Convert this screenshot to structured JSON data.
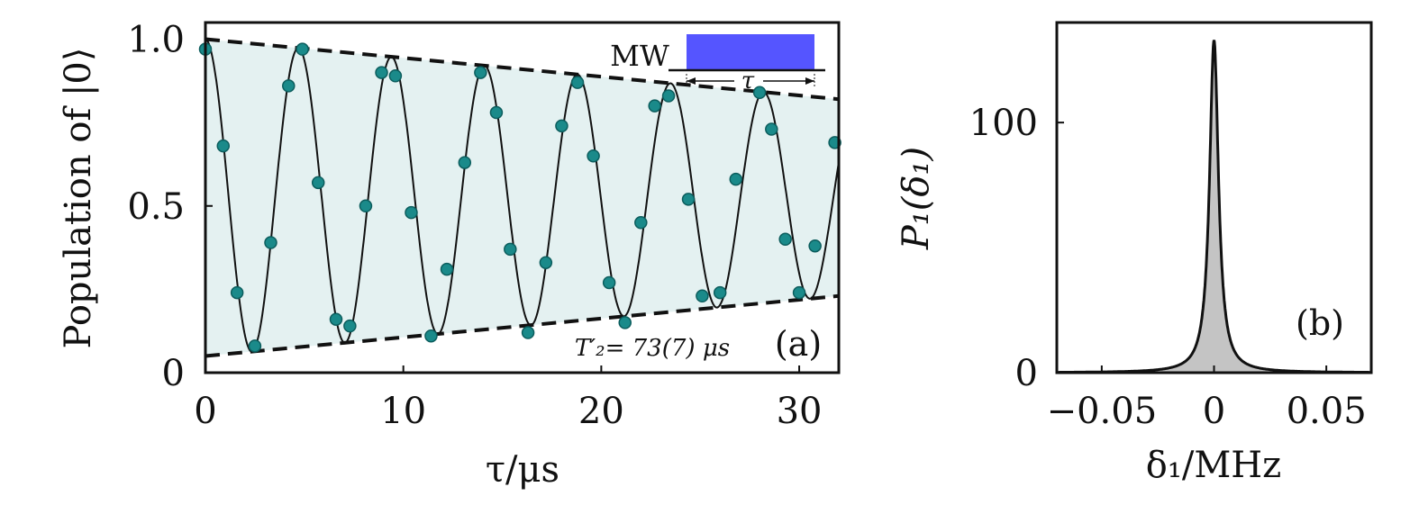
{
  "chart_data": [
    {
      "panel": "(a)",
      "type": "scatter",
      "xlabel": "τ/μs",
      "ylabel": "Population of |0⟩",
      "xlim": [
        0,
        32
      ],
      "ylim": [
        0,
        1.05
      ],
      "xticks": [
        0,
        10,
        20,
        30
      ],
      "yticks": [
        0,
        0.5,
        1.0
      ],
      "xtick_labels": [
        "0",
        "10",
        "20",
        "30"
      ],
      "ytick_labels": [
        "0",
        "0.5",
        "1.0"
      ],
      "annotation": "T′₂= 73(7) μs",
      "panel_label": "(a)",
      "inset": {
        "label": "MW",
        "span_label": "τ",
        "color": "#5555ff"
      },
      "series": [
        {
          "kind": "points",
          "color": "#1a8a8a",
          "x": [
            0.0,
            0.9,
            1.6,
            2.5,
            3.3,
            4.2,
            4.9,
            5.7,
            6.6,
            7.3,
            8.1,
            8.9,
            9.6,
            10.4,
            11.4,
            12.2,
            13.1,
            13.9,
            14.7,
            15.4,
            16.3,
            17.2,
            18.0,
            18.8,
            19.6,
            20.4,
            21.2,
            22.0,
            22.7,
            23.4,
            24.4,
            25.1,
            26.0,
            26.8,
            28.0,
            28.6,
            29.3,
            30.0,
            30.8,
            31.8
          ],
          "y": [
            0.97,
            0.68,
            0.24,
            0.08,
            0.39,
            0.86,
            0.97,
            0.57,
            0.16,
            0.14,
            0.5,
            0.9,
            0.89,
            0.48,
            0.11,
            0.31,
            0.63,
            0.9,
            0.78,
            0.37,
            0.12,
            0.33,
            0.74,
            0.87,
            0.65,
            0.27,
            0.15,
            0.45,
            0.8,
            0.83,
            0.52,
            0.23,
            0.24,
            0.58,
            0.84,
            0.73,
            0.4,
            0.24,
            0.38,
            0.69
          ]
        },
        {
          "kind": "fit",
          "color": "#111111",
          "period": 4.7,
          "T2": 73,
          "initial": 0.97
        },
        {
          "kind": "envelope",
          "color": "#111111",
          "upper": [
            [
              0,
              1.0
            ],
            [
              32,
              0.82
            ]
          ],
          "lower": [
            [
              0,
              0.05
            ],
            [
              32,
              0.23
            ]
          ],
          "fill": "#e4f1f1"
        }
      ]
    },
    {
      "panel": "(b)",
      "type": "area",
      "xlabel": "δ₁/MHz",
      "ylabel": "P₁(δ₁)",
      "xlim": [
        -0.07,
        0.07
      ],
      "ylim": [
        0,
        140
      ],
      "xticks": [
        -0.05,
        0,
        0.05
      ],
      "yticks": [
        0,
        100
      ],
      "xtick_labels": [
        "−0.05",
        "0",
        "0.05"
      ],
      "ytick_labels": [
        "0",
        "100"
      ],
      "panel_label": "(b)",
      "series": [
        {
          "kind": "lorentzian",
          "center": 0,
          "peak": 133,
          "hwhm": 0.0024,
          "fill": "#c4c4c4",
          "line": "#111111"
        }
      ]
    }
  ]
}
